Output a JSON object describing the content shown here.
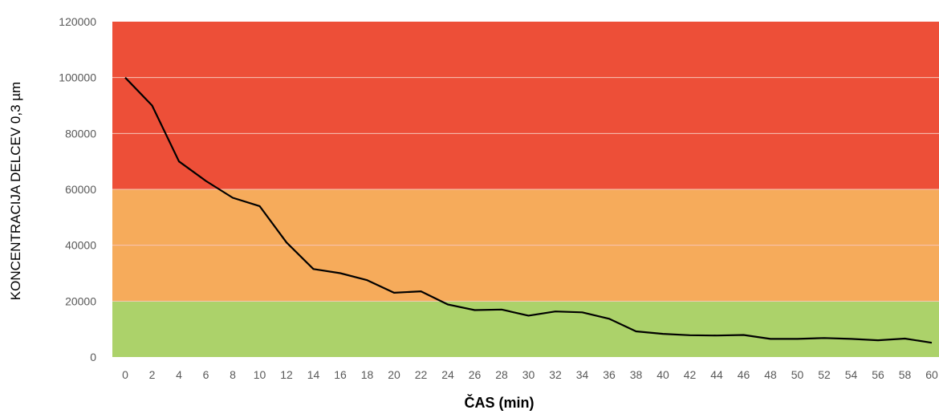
{
  "chart_data": {
    "type": "line",
    "title_fragment": "(0,3 µm)",
    "xlabel": "ČAS (min)",
    "ylabel": "KONCENTRACIJA DELCEV 0,3 µm",
    "ylim": [
      0,
      120000
    ],
    "yticks": [
      "0",
      "20000",
      "40000",
      "60000",
      "80000",
      "100000",
      "120000"
    ],
    "x": [
      "0",
      "2",
      "4",
      "6",
      "8",
      "10",
      "12",
      "14",
      "16",
      "18",
      "20",
      "22",
      "24",
      "26",
      "28",
      "30",
      "32",
      "34",
      "36",
      "38",
      "40",
      "42",
      "44",
      "46",
      "48",
      "50",
      "52",
      "54",
      "56",
      "58",
      "60"
    ],
    "values": [
      100000,
      90000,
      70000,
      63000,
      57000,
      54000,
      41000,
      31500,
      30000,
      27500,
      23000,
      23500,
      18800,
      16800,
      17000,
      14800,
      16300,
      16000,
      13700,
      9200,
      8300,
      7800,
      7700,
      7900,
      6500,
      6500,
      6800,
      6500,
      6000,
      6600,
      5100
    ],
    "bands": [
      {
        "from": 0,
        "to": 20000,
        "color": "#acd26a"
      },
      {
        "from": 20000,
        "to": 60000,
        "color": "#f6ab5b"
      },
      {
        "from": 60000,
        "to": 120000,
        "color": "#ed4f38"
      }
    ],
    "line_color": "#000000",
    "grid_color": "#f7c6b8"
  }
}
